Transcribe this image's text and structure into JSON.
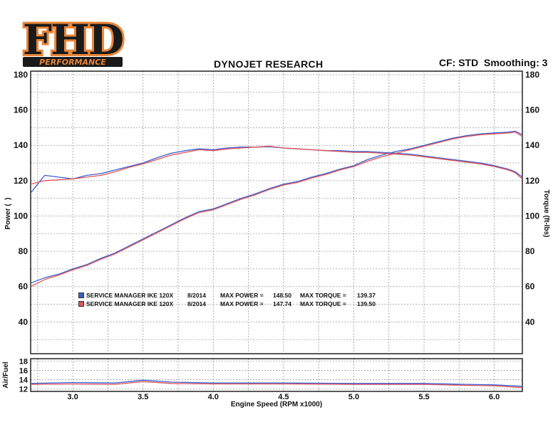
{
  "header": {
    "logo_text": "FHD",
    "logo_subtext": "PERFORMANCE",
    "title": "DYNOJET RESEARCH",
    "settings": "CF: STD  Smoothing: 3"
  },
  "colors": {
    "run1": "#3a5fcd",
    "run2": "#e0525a",
    "grid": "#9a9a9a"
  },
  "legend": [
    {
      "name": "SERVICE MANAGER IKE 120X",
      "date": "8/2014",
      "max_power_label": "MAX POWER =",
      "max_power": "148.50",
      "max_torque_label": "MAX TORQUE =",
      "max_torque": "139.37",
      "color": "#3a5fcd"
    },
    {
      "name": "SERVICE MANAGER IKE 120X",
      "date": "8/2014",
      "max_power_label": "MAX POWER =",
      "max_power": "147.74",
      "max_torque_label": "MAX TORQUE =",
      "max_torque": "139.50",
      "color": "#e0525a"
    }
  ],
  "chart_data": [
    {
      "type": "line",
      "title": "DYNOJET RESEARCH",
      "xlabel": "Engine Speed (RPM x1000)",
      "ylabel_left": "Power (  )",
      "ylabel_right": "Torque (ft-lbs)",
      "xlim": [
        2.7,
        6.2
      ],
      "ylim": [
        22,
        182
      ],
      "x_ticks": [
        3.0,
        3.5,
        4.0,
        4.5,
        5.0,
        5.5,
        6.0
      ],
      "y_ticks": [
        40,
        60,
        80,
        100,
        120,
        140,
        160,
        180
      ],
      "grid": true,
      "series": [
        {
          "name": "Power",
          "run": 1,
          "color": "#3a5fcd",
          "x": [
            2.7,
            2.8,
            2.9,
            3.0,
            3.1,
            3.2,
            3.3,
            3.4,
            3.5,
            3.6,
            3.7,
            3.8,
            3.9,
            4.0,
            4.1,
            4.2,
            4.3,
            4.4,
            4.5,
            4.6,
            4.7,
            4.8,
            4.9,
            5.0,
            5.1,
            5.2,
            5.3,
            5.4,
            5.5,
            5.6,
            5.7,
            5.8,
            5.9,
            6.0,
            6.1,
            6.15,
            6.2
          ],
          "y": [
            62,
            65,
            67,
            70,
            72.5,
            76,
            79,
            83,
            87,
            91,
            95,
            99,
            102.5,
            104,
            107,
            110,
            112.5,
            115.5,
            118,
            119.5,
            122,
            124,
            126.5,
            128.5,
            132,
            134.5,
            136.5,
            138,
            140,
            142,
            144,
            145.5,
            146.5,
            147,
            147.5,
            148,
            146
          ]
        },
        {
          "name": "Torque",
          "run": 1,
          "color": "#3a5fcd",
          "x": [
            2.7,
            2.8,
            2.9,
            3.0,
            3.1,
            3.2,
            3.3,
            3.4,
            3.5,
            3.6,
            3.7,
            3.8,
            3.9,
            4.0,
            4.1,
            4.2,
            4.3,
            4.4,
            4.5,
            4.6,
            4.7,
            4.8,
            4.9,
            5.0,
            5.1,
            5.2,
            5.3,
            5.4,
            5.5,
            5.6,
            5.7,
            5.8,
            5.9,
            6.0,
            6.1,
            6.15,
            6.2
          ],
          "y": [
            113,
            123,
            122,
            121,
            123,
            124,
            126,
            128,
            130,
            133,
            135.5,
            137,
            138,
            137.5,
            138.5,
            139,
            139,
            139.2,
            138.5,
            138,
            137.5,
            137,
            137,
            136.5,
            136.5,
            136,
            135.5,
            135,
            134,
            133,
            132,
            131,
            130,
            128.5,
            126.5,
            125,
            122
          ]
        },
        {
          "name": "Power",
          "run": 2,
          "color": "#e0525a",
          "x": [
            2.7,
            2.8,
            2.9,
            3.0,
            3.1,
            3.2,
            3.3,
            3.4,
            3.5,
            3.6,
            3.7,
            3.8,
            3.9,
            4.0,
            4.1,
            4.2,
            4.3,
            4.4,
            4.5,
            4.6,
            4.7,
            4.8,
            4.9,
            5.0,
            5.1,
            5.2,
            5.3,
            5.4,
            5.5,
            5.6,
            5.7,
            5.8,
            5.9,
            6.0,
            6.1,
            6.15,
            6.2
          ],
          "y": [
            60,
            64,
            66.5,
            69.5,
            72,
            75.5,
            78.5,
            82.5,
            86.5,
            90.5,
            94.5,
            98.5,
            102,
            103.5,
            106.5,
            109.5,
            112,
            115,
            117.5,
            119,
            121.5,
            123.5,
            126,
            128,
            131,
            133.5,
            135.5,
            137.5,
            139.5,
            141.5,
            143.5,
            145,
            146,
            146.5,
            147,
            147.5,
            145
          ]
        },
        {
          "name": "Torque",
          "run": 2,
          "color": "#e0525a",
          "x": [
            2.7,
            2.8,
            2.9,
            3.0,
            3.1,
            3.2,
            3.3,
            3.4,
            3.5,
            3.6,
            3.7,
            3.8,
            3.9,
            4.0,
            4.1,
            4.2,
            4.3,
            4.4,
            4.5,
            4.6,
            4.7,
            4.8,
            4.9,
            5.0,
            5.1,
            5.2,
            5.3,
            5.4,
            5.5,
            5.6,
            5.7,
            5.8,
            5.9,
            6.0,
            6.1,
            6.15,
            6.2
          ],
          "y": [
            118,
            120,
            120.5,
            121,
            122,
            123,
            125,
            127.5,
            129.5,
            132,
            134.5,
            136,
            137.5,
            137,
            138,
            138.5,
            139,
            139.5,
            138.5,
            138,
            137.5,
            137,
            136.5,
            136,
            136,
            135.5,
            135,
            134.5,
            133.5,
            132.5,
            131.5,
            130.5,
            129.5,
            128,
            126,
            124.5,
            121
          ]
        }
      ]
    },
    {
      "type": "line",
      "ylabel": "Air/Fuel",
      "xlim": [
        2.7,
        6.2
      ],
      "ylim": [
        11.5,
        18.5
      ],
      "y_ticks": [
        12,
        14,
        16,
        18
      ],
      "grid": true,
      "series": [
        {
          "name": "Air/Fuel",
          "run": 1,
          "color": "#3a5fcd",
          "x": [
            2.7,
            3.0,
            3.3,
            3.5,
            3.7,
            4.0,
            4.5,
            5.0,
            5.5,
            5.8,
            6.0,
            6.2
          ],
          "y": [
            13.2,
            13.4,
            13.3,
            13.9,
            13.5,
            13.3,
            13.3,
            13.2,
            13.2,
            13.0,
            12.9,
            12.6
          ]
        },
        {
          "name": "Air/Fuel",
          "run": 2,
          "color": "#e0525a",
          "x": [
            2.7,
            3.0,
            3.3,
            3.5,
            3.7,
            4.0,
            4.5,
            5.0,
            5.5,
            5.8,
            6.0,
            6.2
          ],
          "y": [
            13.0,
            13.1,
            13.0,
            13.6,
            13.2,
            13.1,
            13.1,
            13.0,
            13.0,
            12.8,
            12.7,
            12.3
          ]
        }
      ]
    }
  ]
}
